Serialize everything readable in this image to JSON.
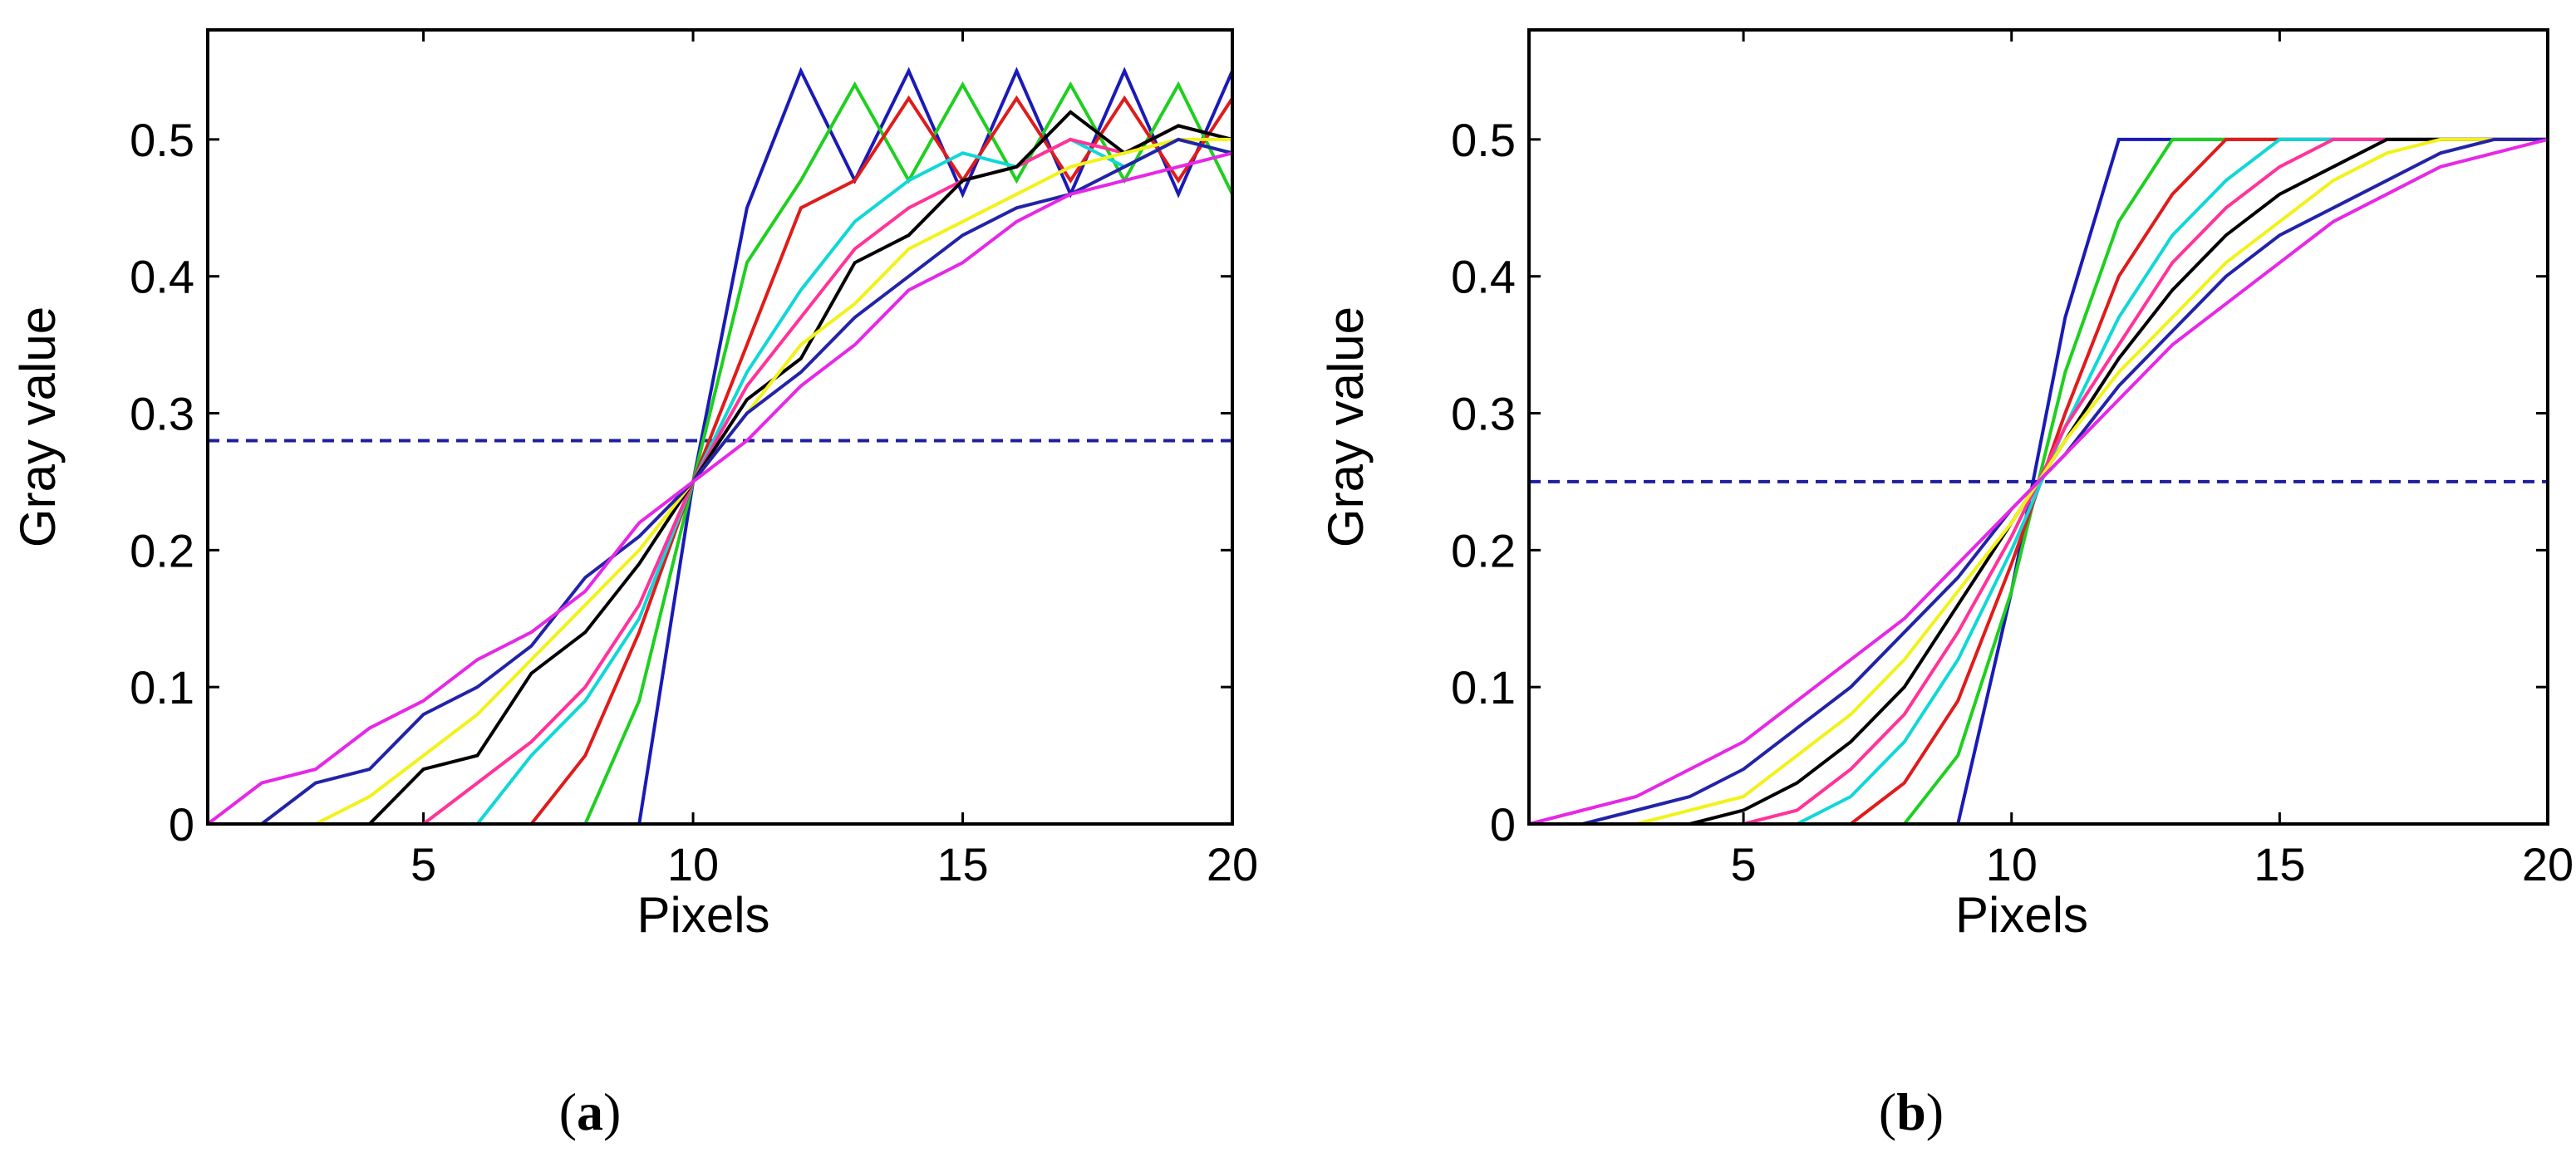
{
  "chart_data": [
    {
      "type": "line",
      "panel_label": "a",
      "xlabel": "Pixels",
      "ylabel": "Gray value",
      "xlim": [
        1,
        20
      ],
      "ylim": [
        0,
        0.58
      ],
      "xticks": [
        5,
        10,
        15,
        20
      ],
      "yticks": [
        0,
        0.1,
        0.2,
        0.3,
        0.4,
        0.5
      ],
      "ytick_labels": [
        "0",
        "0.1",
        "0.2",
        "0.3",
        "0.4",
        "0.5"
      ],
      "grid": false,
      "threshold": {
        "y": 0.28,
        "color": "#1f1f9e",
        "style": "dashed"
      },
      "x": [
        1,
        2,
        3,
        4,
        5,
        6,
        7,
        8,
        9,
        10,
        11,
        12,
        13,
        14,
        15,
        16,
        17,
        18,
        19,
        20
      ],
      "series": [
        {
          "name": "blue",
          "color": "#1a1ab8",
          "values": [
            0,
            0,
            0,
            0,
            0,
            0,
            0,
            0,
            0,
            0.25,
            0.45,
            0.55,
            0.47,
            0.55,
            0.46,
            0.55,
            0.46,
            0.55,
            0.46,
            0.55
          ]
        },
        {
          "name": "green",
          "color": "#1fcf1f",
          "values": [
            0,
            0,
            0,
            0,
            0,
            0,
            0,
            0,
            0.09,
            0.25,
            0.41,
            0.47,
            0.54,
            0.47,
            0.54,
            0.47,
            0.54,
            0.47,
            0.54,
            0.46
          ]
        },
        {
          "name": "red",
          "color": "#e01b1b",
          "values": [
            0,
            0,
            0,
            0,
            0,
            0,
            0,
            0.05,
            0.14,
            0.25,
            0.35,
            0.45,
            0.47,
            0.53,
            0.47,
            0.53,
            0.47,
            0.53,
            0.47,
            0.53
          ]
        },
        {
          "name": "cyan",
          "color": "#11d7d7",
          "values": [
            0,
            0,
            0,
            0,
            0,
            0,
            0.05,
            0.09,
            0.15,
            0.25,
            0.33,
            0.39,
            0.44,
            0.47,
            0.49,
            0.48,
            0.5,
            0.48,
            0.5,
            0.49
          ]
        },
        {
          "name": "pink",
          "color": "#ff3399",
          "values": [
            0,
            0,
            0,
            0,
            0,
            0.03,
            0.06,
            0.1,
            0.16,
            0.25,
            0.32,
            0.37,
            0.42,
            0.45,
            0.47,
            0.48,
            0.5,
            0.49,
            0.51,
            0.5
          ]
        },
        {
          "name": "black",
          "color": "#000000",
          "values": [
            0,
            0,
            0,
            0,
            0.04,
            0.05,
            0.11,
            0.14,
            0.19,
            0.25,
            0.31,
            0.34,
            0.41,
            0.43,
            0.47,
            0.48,
            0.52,
            0.49,
            0.51,
            0.5
          ]
        },
        {
          "name": "yellow",
          "color": "#f2f21a",
          "values": [
            0,
            0,
            0,
            0.02,
            0.05,
            0.08,
            0.12,
            0.16,
            0.2,
            0.25,
            0.3,
            0.35,
            0.38,
            0.42,
            0.44,
            0.46,
            0.48,
            0.49,
            0.5,
            0.5
          ]
        },
        {
          "name": "navy",
          "color": "#2323a8",
          "values": [
            0,
            0,
            0.03,
            0.04,
            0.08,
            0.1,
            0.13,
            0.18,
            0.21,
            0.25,
            0.3,
            0.33,
            0.37,
            0.4,
            0.43,
            0.45,
            0.46,
            0.48,
            0.5,
            0.49
          ]
        },
        {
          "name": "magenta",
          "color": "#e628e6",
          "values": [
            0,
            0.03,
            0.04,
            0.07,
            0.09,
            0.12,
            0.14,
            0.17,
            0.22,
            0.25,
            0.28,
            0.32,
            0.35,
            0.39,
            0.41,
            0.44,
            0.46,
            0.47,
            0.48,
            0.49
          ]
        }
      ]
    },
    {
      "type": "line",
      "panel_label": "b",
      "xlabel": "Pixels",
      "ylabel": "Gray value",
      "xlim": [
        1,
        20
      ],
      "ylim": [
        0,
        0.58
      ],
      "xticks": [
        5,
        10,
        15,
        20
      ],
      "yticks": [
        0,
        0.1,
        0.2,
        0.3,
        0.4,
        0.5
      ],
      "ytick_labels": [
        "0",
        "0.1",
        "0.2",
        "0.3",
        "0.4",
        "0.5"
      ],
      "grid": false,
      "threshold": {
        "y": 0.25,
        "color": "#1f1f9e",
        "style": "dashed"
      },
      "x": [
        1,
        2,
        3,
        4,
        5,
        6,
        7,
        8,
        9,
        10,
        11,
        12,
        13,
        14,
        15,
        16,
        17,
        18,
        19,
        20
      ],
      "series": [
        {
          "name": "blue",
          "color": "#1a1ab8",
          "values": [
            0,
            0,
            0,
            0,
            0,
            0,
            0,
            0,
            0,
            0.17,
            0.37,
            0.5,
            0.5,
            0.5,
            0.5,
            0.5,
            0.5,
            0.5,
            0.5,
            0.5
          ]
        },
        {
          "name": "green",
          "color": "#1fcf1f",
          "values": [
            0,
            0,
            0,
            0,
            0,
            0,
            0,
            0,
            0.05,
            0.17,
            0.33,
            0.44,
            0.5,
            0.5,
            0.5,
            0.5,
            0.5,
            0.5,
            0.5,
            0.5
          ]
        },
        {
          "name": "red",
          "color": "#e01b1b",
          "values": [
            0,
            0,
            0,
            0,
            0,
            0,
            0,
            0.03,
            0.09,
            0.19,
            0.3,
            0.4,
            0.46,
            0.5,
            0.5,
            0.5,
            0.5,
            0.5,
            0.5,
            0.5
          ]
        },
        {
          "name": "cyan",
          "color": "#11d7d7",
          "values": [
            0,
            0,
            0,
            0,
            0,
            0,
            0.02,
            0.06,
            0.12,
            0.2,
            0.29,
            0.37,
            0.43,
            0.47,
            0.5,
            0.5,
            0.5,
            0.5,
            0.5,
            0.5
          ]
        },
        {
          "name": "pink",
          "color": "#ff3399",
          "values": [
            0,
            0,
            0,
            0,
            0,
            0.01,
            0.04,
            0.08,
            0.14,
            0.21,
            0.29,
            0.35,
            0.41,
            0.45,
            0.48,
            0.5,
            0.5,
            0.5,
            0.5,
            0.5
          ]
        },
        {
          "name": "black",
          "color": "#000000",
          "values": [
            0,
            0,
            0,
            0,
            0.01,
            0.03,
            0.06,
            0.1,
            0.16,
            0.22,
            0.28,
            0.34,
            0.39,
            0.43,
            0.46,
            0.48,
            0.5,
            0.5,
            0.5,
            0.5
          ]
        },
        {
          "name": "yellow",
          "color": "#f2f21a",
          "values": [
            0,
            0,
            0,
            0.01,
            0.02,
            0.05,
            0.08,
            0.12,
            0.17,
            0.22,
            0.28,
            0.33,
            0.37,
            0.41,
            0.44,
            0.47,
            0.49,
            0.5,
            0.5,
            0.5
          ]
        },
        {
          "name": "navy",
          "color": "#2323a8",
          "values": [
            0,
            0,
            0.01,
            0.02,
            0.04,
            0.07,
            0.1,
            0.14,
            0.18,
            0.23,
            0.27,
            0.32,
            0.36,
            0.4,
            0.43,
            0.45,
            0.47,
            0.49,
            0.5,
            0.5
          ]
        },
        {
          "name": "magenta",
          "color": "#e628e6",
          "values": [
            0,
            0.01,
            0.02,
            0.04,
            0.06,
            0.09,
            0.12,
            0.15,
            0.19,
            0.23,
            0.27,
            0.31,
            0.35,
            0.38,
            0.41,
            0.44,
            0.46,
            0.48,
            0.49,
            0.5
          ]
        }
      ]
    }
  ]
}
